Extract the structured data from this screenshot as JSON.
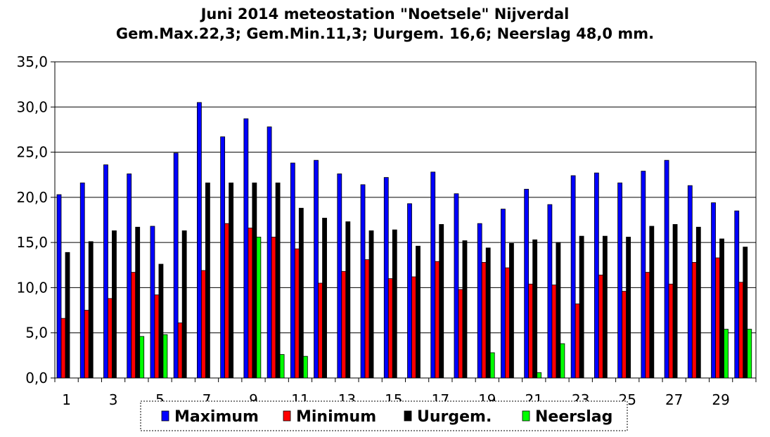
{
  "chart_data": {
    "type": "bar",
    "title": "Juni 2014 meteostation \"Noetsele\" Nijverdal",
    "subtitle": "Gem.Max.22,3; Gem.Min.11,3; Uurgem. 16,6; Neerslag 48,0 mm.",
    "categories": [
      "1",
      "2",
      "3",
      "4",
      "5",
      "6",
      "7",
      "8",
      "9",
      "10",
      "11",
      "12",
      "13",
      "14",
      "15",
      "16",
      "17",
      "18",
      "19",
      "20",
      "21",
      "22",
      "23",
      "24",
      "25",
      "26",
      "27",
      "28",
      "29",
      "30"
    ],
    "x_tick_labels": [
      "1",
      "",
      "3",
      "",
      "5",
      "",
      "7",
      "",
      "9",
      "",
      "11",
      "",
      "13",
      "",
      "15",
      "",
      "17",
      "",
      "19",
      "",
      "21",
      "",
      "23",
      "",
      "25",
      "",
      "27",
      "",
      "29",
      ""
    ],
    "y_tick_labels": [
      "0,0",
      "5,0",
      "10,0",
      "15,0",
      "20,0",
      "25,0",
      "30,0",
      "35,0"
    ],
    "ylim": [
      0,
      35
    ],
    "grid": true,
    "legend_position": "bottom",
    "series": [
      {
        "name": "Maximum",
        "color": "#0000ff",
        "values": [
          20.3,
          21.6,
          23.6,
          22.6,
          16.8,
          24.9,
          30.5,
          26.7,
          28.7,
          27.8,
          23.8,
          24.1,
          22.6,
          21.4,
          22.2,
          19.3,
          22.8,
          20.4,
          17.1,
          18.7,
          20.9,
          19.2,
          22.4,
          22.7,
          21.6,
          22.9,
          24.1,
          21.3,
          19.4,
          18.5
        ]
      },
      {
        "name": "Minimum",
        "color": "#ff0000",
        "values": [
          6.6,
          7.5,
          8.8,
          11.7,
          9.2,
          6.1,
          11.9,
          17.1,
          16.6,
          15.6,
          14.3,
          10.5,
          11.8,
          13.1,
          11.0,
          11.2,
          12.9,
          9.8,
          12.8,
          12.2,
          10.4,
          10.3,
          8.2,
          11.4,
          9.6,
          11.7,
          10.4,
          12.8,
          13.3,
          10.6
        ]
      },
      {
        "name": "Uurgem.",
        "color": "#000000",
        "values": [
          13.9,
          15.1,
          16.3,
          16.7,
          12.6,
          16.3,
          21.6,
          21.6,
          21.6,
          21.6,
          18.8,
          17.7,
          17.3,
          16.3,
          16.4,
          14.6,
          17.0,
          15.2,
          14.4,
          14.9,
          15.3,
          15.0,
          15.7,
          15.7,
          15.6,
          16.8,
          17.0,
          16.7,
          15.4,
          14.5
        ]
      },
      {
        "name": "Neerslag",
        "color": "#00ff00",
        "values": [
          0,
          0,
          0,
          4.6,
          4.8,
          0,
          0,
          0,
          15.6,
          2.6,
          2.4,
          0,
          0,
          0,
          0,
          0,
          0,
          0,
          2.8,
          0,
          0.6,
          3.8,
          0,
          0,
          0,
          0,
          0,
          0,
          5.4,
          5.4
        ]
      }
    ]
  }
}
